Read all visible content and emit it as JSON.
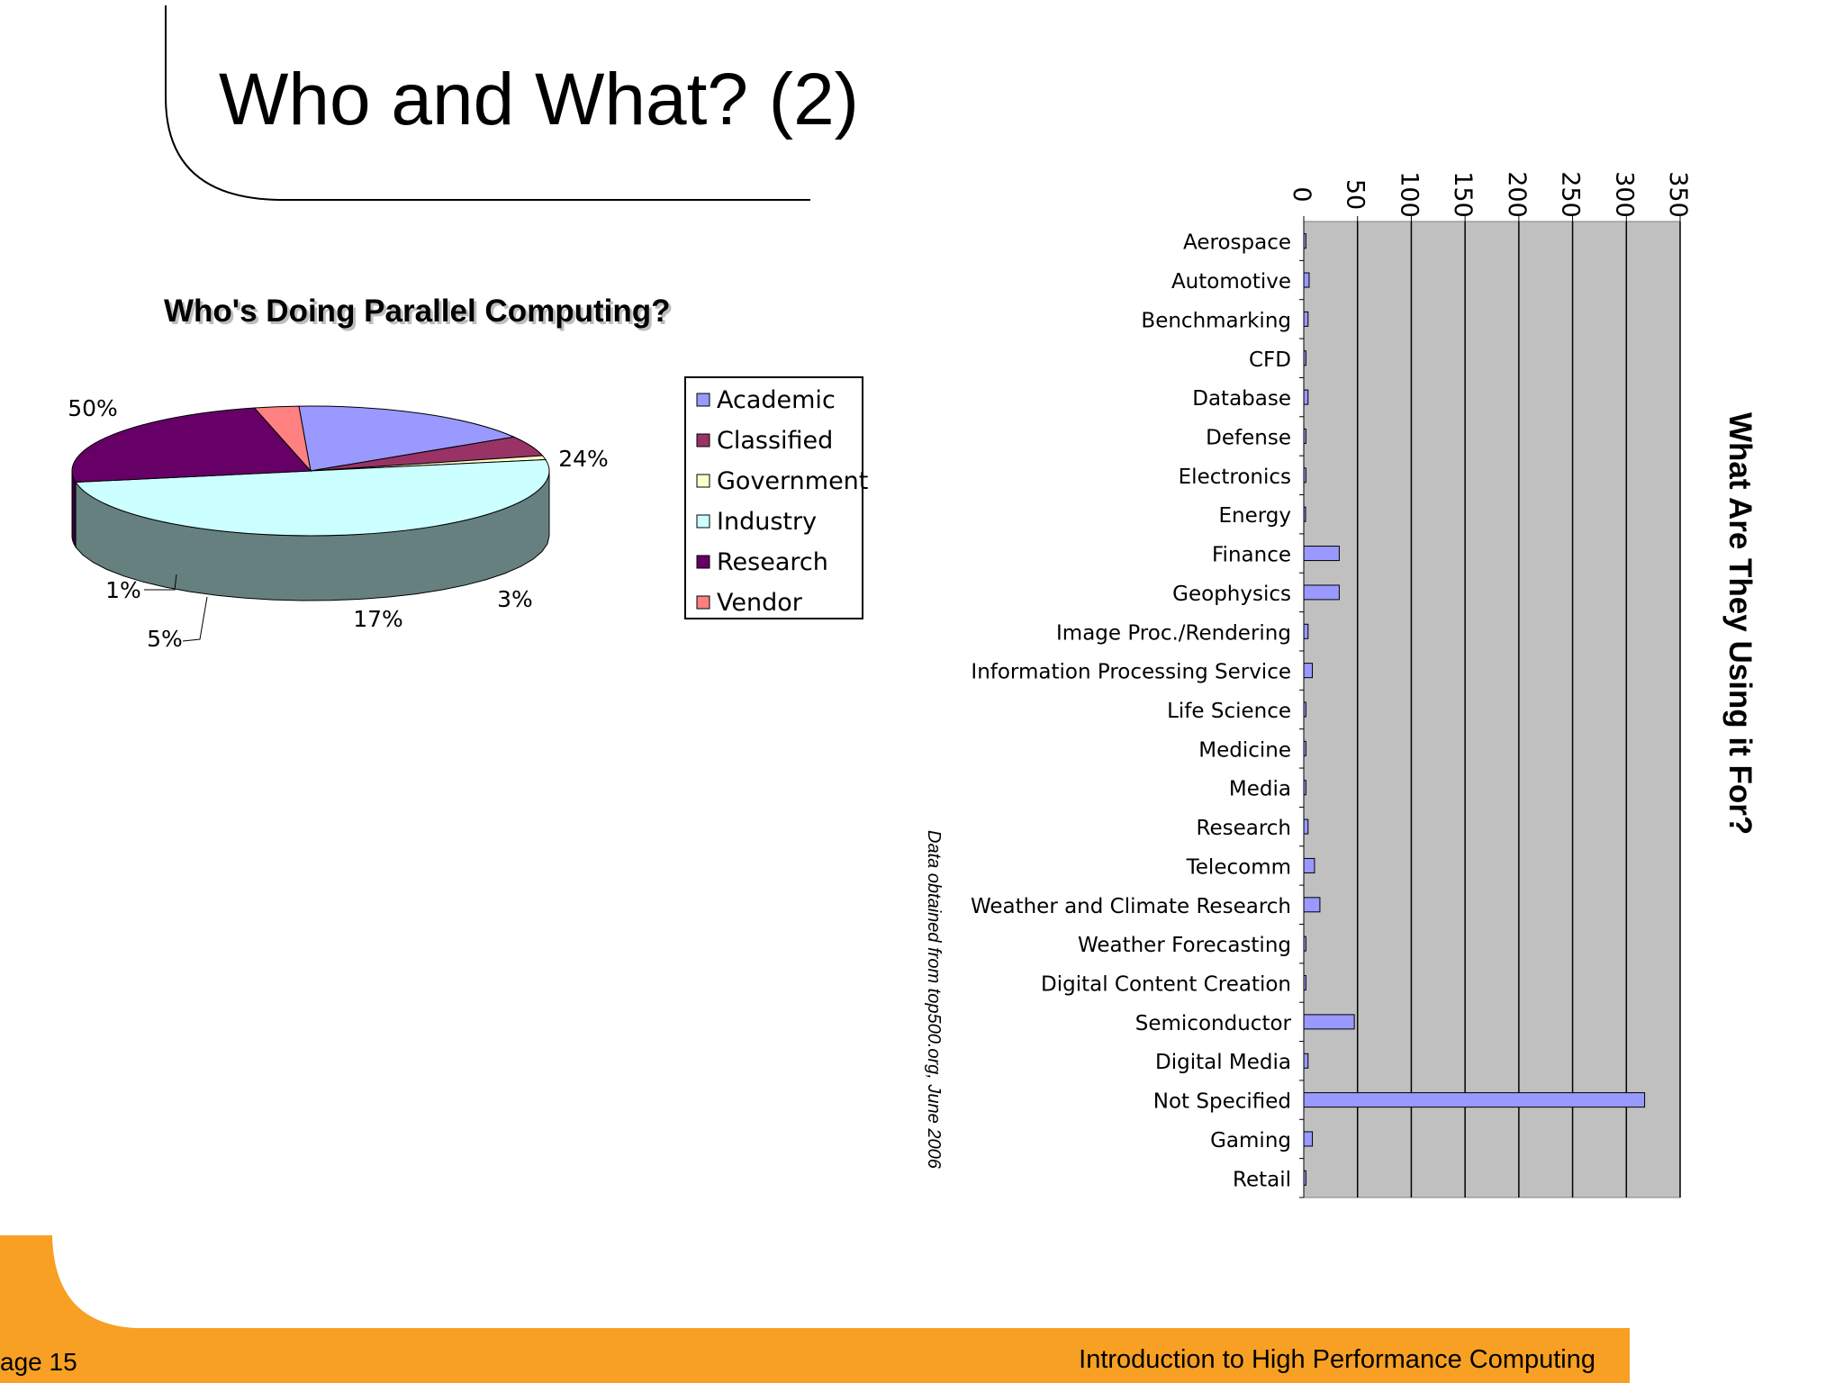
{
  "slide": {
    "title": "Who and What? (2)",
    "page_label": "age 15",
    "course": "Introduction to High Performance Computing",
    "accent_color": "#f7a023"
  },
  "chart_data": [
    {
      "type": "pie",
      "title": "Who's Doing Parallel Computing?",
      "legend_position": "right",
      "categories": [
        "Academic",
        "Classified",
        "Government",
        "Industry",
        "Research",
        "Vendor"
      ],
      "values": [
        17,
        5,
        1,
        50,
        24,
        3
      ],
      "labels": [
        "17%",
        "5%",
        "1%",
        "50%",
        "24%",
        "3%"
      ],
      "colors": [
        "#9999ff",
        "#993366",
        "#ffffcc",
        "#ccffff",
        "#660066",
        "#ff8080"
      ]
    },
    {
      "type": "bar",
      "orientation": "rotated",
      "title": "What Are They Using it For?",
      "source_note": "Data obtained from top500.org, June 2006",
      "categories": [
        "Aerospace",
        "Automotive",
        "Benchmarking",
        "CFD",
        "Database",
        "Defense",
        "Electronics",
        "Energy",
        "Finance",
        "Geophysics",
        "Image Proc./Rendering",
        "Information Processing Service",
        "Life Science",
        "Medicine",
        "Media",
        "Research",
        "Telecomm",
        "Weather and Climate Research",
        "Weather Forecasting",
        "Digital Content Creation",
        "Semiconductor",
        "Digital Media",
        "Not Specified",
        "Gaming",
        "Retail"
      ],
      "values": [
        2,
        5,
        4,
        2,
        4,
        2,
        2,
        1,
        33,
        33,
        4,
        8,
        2,
        2,
        2,
        4,
        10,
        15,
        2,
        2,
        47,
        4,
        317,
        8,
        2
      ],
      "ylim": [
        0,
        350
      ],
      "ticks": [
        "0",
        "50",
        "100",
        "150",
        "200",
        "250",
        "300",
        "350"
      ],
      "bar_color": "#9999ff",
      "plot_background": "#c0c0c0"
    }
  ]
}
